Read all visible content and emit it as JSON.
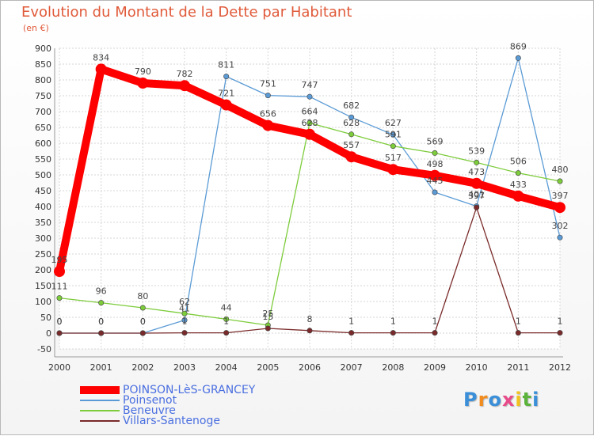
{
  "chart_data": {
    "type": "line",
    "title": "Evolution du Montant de la Dette par Habitant",
    "unit_label": "(en €)",
    "x": [
      "2000",
      "2001",
      "2002",
      "2003",
      "2004",
      "2005",
      "2006",
      "2007",
      "2008",
      "2009",
      "2010",
      "2011",
      "2012"
    ],
    "y_ticks": [
      "-50",
      "0",
      "50",
      "100",
      "150",
      "200",
      "250",
      "300",
      "350",
      "400",
      "450",
      "500",
      "550",
      "600",
      "650",
      "700",
      "750",
      "800",
      "850",
      "900"
    ],
    "ylim": [
      -50,
      900
    ],
    "grid": true,
    "legend_position": "bottom-left",
    "series": [
      {
        "name": "POINSON-LèS-GRANCEY",
        "color": "#ff0000",
        "values": [
          195,
          834,
          790,
          782,
          721,
          656,
          628,
          557,
          517,
          498,
          473,
          433,
          397
        ],
        "labels": [
          "195",
          "834",
          "790",
          "782",
          "721",
          "656",
          "628",
          "557",
          "517",
          "498",
          "473",
          "433",
          "397"
        ]
      },
      {
        "name": "Poinsenot",
        "color": "#5b9bd5",
        "values": [
          0,
          0,
          0,
          41,
          811,
          751,
          747,
          682,
          627,
          445,
          401,
          869,
          302
        ],
        "labels": [
          "0",
          "0",
          "0",
          "41",
          "811",
          "751",
          "747",
          "682",
          "627",
          "445",
          "401",
          "869",
          "302"
        ]
      },
      {
        "name": "Beneuvre",
        "color": "#7dcc3b",
        "values": [
          111,
          96,
          80,
          62,
          44,
          25,
          664,
          628,
          591,
          569,
          539,
          506,
          480
        ],
        "labels": [
          "111",
          "96",
          "80",
          "62",
          "44",
          "25",
          "664",
          "628",
          "591",
          "569",
          "539",
          "506",
          "480"
        ]
      },
      {
        "name": "Villars-Santenoge",
        "color": "#7a2a2a",
        "values": [
          0,
          0,
          0,
          1,
          1,
          15,
          8,
          1,
          1,
          1,
          397,
          1,
          1
        ],
        "labels": [
          "0",
          "0",
          "0",
          "1",
          "1",
          "15",
          "8",
          "1",
          "1",
          "1",
          "397",
          "1",
          "1"
        ]
      }
    ]
  },
  "brand": {
    "letters": [
      "P",
      "r",
      "o",
      "x",
      "i",
      "t",
      "i"
    ],
    "colors": [
      "#3a8fd8",
      "#f28c1e",
      "#3a8fd8",
      "#e84b8a",
      "#f2c21e",
      "#5bb33c",
      "#3a8fd8"
    ]
  }
}
